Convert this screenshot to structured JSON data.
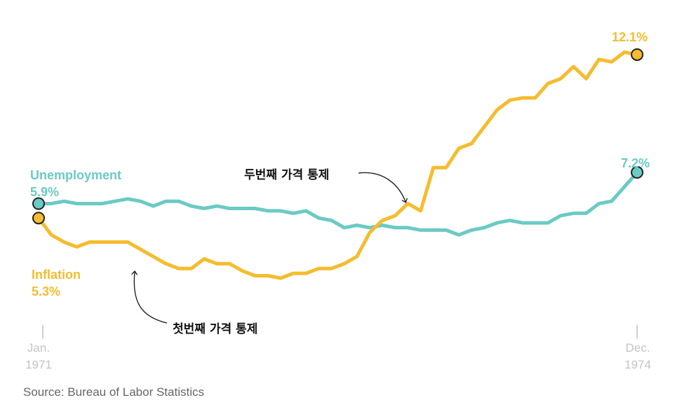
{
  "chart_data": {
    "type": "line",
    "title": "",
    "xlabel": "",
    "ylabel": "",
    "x_range": [
      "Jan. 1971",
      "Dec. 1974"
    ],
    "x_ticks": [
      {
        "month": "Jan.",
        "year": "1971"
      },
      {
        "month": "Dec.",
        "year": "1974"
      }
    ],
    "ylim": [
      0,
      13
    ],
    "grid": false,
    "legend": "inline labels",
    "series": [
      {
        "name": "Unemployment",
        "color": "#6bcac4",
        "start_label": "5.9%",
        "end_label": "7.2%",
        "values": [
          5.9,
          5.9,
          6.0,
          5.9,
          5.9,
          5.9,
          6.0,
          6.1,
          6.0,
          5.8,
          6.0,
          6.0,
          5.8,
          5.7,
          5.8,
          5.7,
          5.7,
          5.7,
          5.6,
          5.6,
          5.5,
          5.6,
          5.3,
          5.2,
          4.9,
          5.0,
          4.9,
          5.0,
          4.9,
          4.9,
          4.8,
          4.8,
          4.8,
          4.6,
          4.8,
          4.9,
          5.1,
          5.2,
          5.1,
          5.1,
          5.1,
          5.4,
          5.5,
          5.5,
          5.9,
          6.0,
          6.6,
          7.2
        ]
      },
      {
        "name": "Inflation",
        "color": "#f5bc2f",
        "start_label": "5.3%",
        "end_label": "12.1%",
        "values": [
          5.3,
          4.6,
          4.3,
          4.1,
          4.3,
          4.3,
          4.3,
          4.3,
          4.0,
          3.7,
          3.4,
          3.2,
          3.2,
          3.6,
          3.4,
          3.4,
          3.1,
          2.9,
          2.9,
          2.8,
          3.0,
          3.0,
          3.2,
          3.2,
          3.4,
          3.7,
          4.7,
          5.2,
          5.4,
          5.9,
          5.6,
          7.4,
          7.4,
          8.2,
          8.4,
          9.1,
          9.8,
          10.2,
          10.3,
          10.3,
          10.9,
          11.1,
          11.6,
          11.1,
          11.9,
          11.8,
          12.2,
          12.1
        ]
      }
    ],
    "annotations": [
      {
        "text": "첫번째 가격 통제",
        "series": "Inflation",
        "at_month_index": 7
      },
      {
        "text": "두번째 가격 통제",
        "series": "Inflation",
        "at_month_index": 29
      }
    ]
  },
  "source": "Source: Bureau of Labor Statistics"
}
